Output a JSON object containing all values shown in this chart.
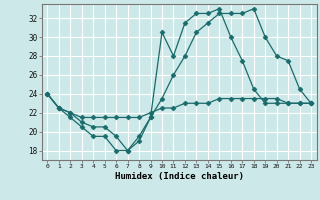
{
  "xlabel": "Humidex (Indice chaleur)",
  "bg_color": "#cde8e8",
  "line_color": "#1a6b6b",
  "grid_color": "#ffffff",
  "xlim": [
    -0.5,
    23.5
  ],
  "ylim": [
    17.0,
    33.5
  ],
  "yticks": [
    18,
    20,
    22,
    24,
    26,
    28,
    30,
    32
  ],
  "xticks": [
    0,
    1,
    2,
    3,
    4,
    5,
    6,
    7,
    8,
    9,
    10,
    11,
    12,
    13,
    14,
    15,
    16,
    17,
    18,
    19,
    20,
    21,
    22,
    23
  ],
  "curve1": {
    "x": [
      0,
      1,
      2,
      3,
      4,
      5,
      6,
      7,
      8,
      9,
      10,
      11,
      12,
      13,
      14,
      15,
      16,
      17,
      18,
      19,
      20,
      21,
      22,
      23
    ],
    "y": [
      24,
      22.5,
      21.5,
      20.5,
      19.5,
      19.5,
      18,
      18,
      19.5,
      21.5,
      30.5,
      28,
      31.5,
      32.5,
      32.5,
      33,
      30,
      27.5,
      24.5,
      23,
      23,
      23,
      23,
      23
    ]
  },
  "curve2": {
    "x": [
      0,
      1,
      2,
      3,
      4,
      5,
      6,
      7,
      8,
      9,
      10,
      11,
      12,
      13,
      14,
      15,
      16,
      17,
      18,
      19,
      20,
      21,
      22,
      23
    ],
    "y": [
      24,
      22.5,
      22,
      21,
      20.5,
      20.5,
      19.5,
      18,
      19,
      21.5,
      23.5,
      26,
      28,
      30.5,
      31.5,
      32.5,
      32.5,
      32.5,
      33,
      30,
      28,
      27.5,
      24.5,
      23
    ]
  },
  "curve3": {
    "x": [
      0,
      1,
      2,
      3,
      4,
      5,
      6,
      7,
      8,
      9,
      10,
      11,
      12,
      13,
      14,
      15,
      16,
      17,
      18,
      19,
      20,
      21,
      22,
      23
    ],
    "y": [
      24,
      22.5,
      22,
      21.5,
      21.5,
      21.5,
      21.5,
      21.5,
      21.5,
      22,
      22.5,
      22.5,
      23,
      23,
      23,
      23.5,
      23.5,
      23.5,
      23.5,
      23.5,
      23.5,
      23,
      23,
      23
    ]
  }
}
